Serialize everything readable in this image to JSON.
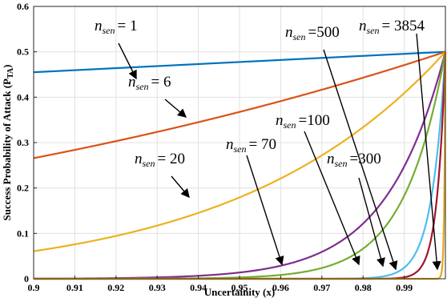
{
  "chart_data": {
    "type": "line",
    "title": "",
    "xlabel": "Uncertainity (x)",
    "ylabel": "Success Probability of Attack (P",
    "ylabel_sub": "TA",
    "ylabel_close": ")",
    "xlim": [
      0.9,
      1.0
    ],
    "ylim": [
      0,
      0.6
    ],
    "x_ticks": [
      0.9,
      0.91,
      0.92,
      0.93,
      0.94,
      0.95,
      0.96,
      0.97,
      0.98,
      0.99
    ],
    "x_tick_labels": [
      "0.9",
      "0.91",
      "0.92",
      "0.93",
      "0.94",
      "0.95",
      "0.96",
      "0.97",
      "0.98",
      "0.99"
    ],
    "y_ticks": [
      0,
      0.1,
      0.2,
      0.3,
      0.4,
      0.5,
      0.6
    ],
    "y_tick_labels": [
      "0",
      "0.1",
      "0.2",
      "0.3",
      "0.4",
      "0.5",
      "0.6"
    ],
    "grid": true,
    "legend": "none",
    "series": [
      {
        "name": "n_sen = 1",
        "n": 1,
        "color": "#0072BD"
      },
      {
        "name": "n_sen = 6",
        "n": 6,
        "color": "#D95319"
      },
      {
        "name": "n_sen = 20",
        "n": 20,
        "color": "#EDB120"
      },
      {
        "name": "n_sen = 70",
        "n": 70,
        "color": "#7E2F8E"
      },
      {
        "name": "n_sen = 100",
        "n": 100,
        "color": "#77AC30"
      },
      {
        "name": "n_sen = 300",
        "n": 300,
        "color": "#4DBEEE"
      },
      {
        "name": "n_sen = 500",
        "n": 500,
        "color": "#A2142F"
      },
      {
        "name": "n_sen = 3854",
        "n": 3854,
        "color": "#E6A817"
      }
    ],
    "annotations": [
      {
        "label_n": "n",
        "label_sub": "sen",
        "label_val": "= 1",
        "series": 1
      },
      {
        "label_n": "n",
        "label_sub": "sen",
        "label_val": "= 6",
        "series": 6
      },
      {
        "label_n": "n",
        "label_sub": "sen",
        "label_val": "= 20",
        "series": 20
      },
      {
        "label_n": "n",
        "label_sub": "sen",
        "label_val": "= 70",
        "series": 70
      },
      {
        "label_n": "n",
        "label_sub": "sen",
        "label_val": "=100",
        "series": 100
      },
      {
        "label_n": "n",
        "label_sub": "sen",
        "label_val": "=300",
        "series": 300
      },
      {
        "label_n": "n",
        "label_sub": "sen",
        "label_val": "=500",
        "series": 500
      },
      {
        "label_n": "n",
        "label_sub": "sen",
        "label_val": "= 3854",
        "series": 3854
      }
    ]
  }
}
